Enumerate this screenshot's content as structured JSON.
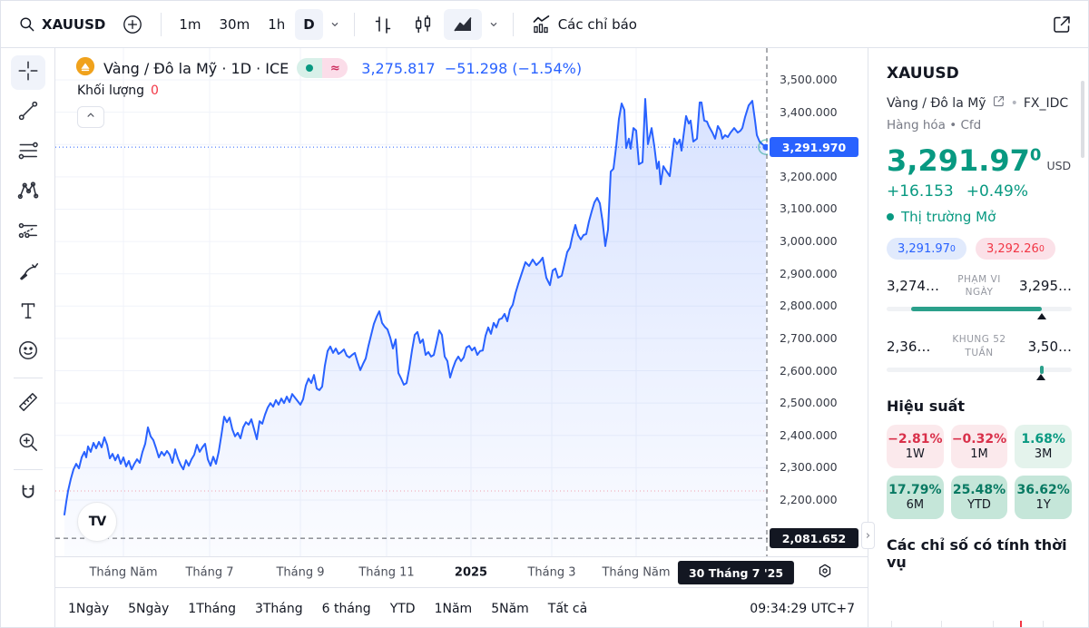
{
  "topbar": {
    "symbol": "XAUUSD",
    "timeframes": [
      "1m",
      "30m",
      "1h",
      "D"
    ],
    "indicators_label": "Các chỉ báo"
  },
  "legend": {
    "title": "Vàng / Đô la Mỹ · 1D · ICE",
    "price": "3,275.817",
    "change": "−51.298 (−1.54%)",
    "volume_label": "Khối lượng",
    "volume_value": "0",
    "logo_text": "TV"
  },
  "chart_data": {
    "type": "area",
    "symbol": "XAUUSD",
    "title": "Vàng / Đô la Mỹ · 1D · ICE",
    "interval": "1D",
    "line_color": "#2962FF",
    "grid": true,
    "price_scale": {
      "top_price": 3500,
      "top_y": 87,
      "bottom_price": 2200,
      "bottom_y": 550
    },
    "y_axis_ticks": [
      {
        "label": "3,500.000",
        "price": 3500
      },
      {
        "label": "3,400.000",
        "price": 3400
      },
      {
        "label": "3,200.000",
        "price": 3200
      },
      {
        "label": "3,100.000",
        "price": 3100
      },
      {
        "label": "3,000.000",
        "price": 3000
      },
      {
        "label": "2,900.000",
        "price": 2900
      },
      {
        "label": "2,800.000",
        "price": 2800
      },
      {
        "label": "2,700.000",
        "price": 2700
      },
      {
        "label": "2,600.000",
        "price": 2600
      },
      {
        "label": "2,500.000",
        "price": 2500
      },
      {
        "label": "2,400.000",
        "price": 2400
      },
      {
        "label": "2,300.000",
        "price": 2300
      },
      {
        "label": "2,200.000",
        "price": 2200
      }
    ],
    "current_price": {
      "label": "3,291.970",
      "price": 3291.97
    },
    "low_marker": {
      "label": "2,081.652",
      "price": 2081.652
    },
    "prev_close_price": 2228,
    "x_ticks": [
      {
        "label": "Tháng Năm",
        "x": 135
      },
      {
        "label": "Tháng 7",
        "x": 230
      },
      {
        "label": "Tháng 9",
        "x": 330
      },
      {
        "label": "Tháng 11",
        "x": 425
      },
      {
        "label": "2025",
        "x": 518,
        "bold": true
      },
      {
        "label": "Tháng 3",
        "x": 607
      },
      {
        "label": "Tháng Năm",
        "x": 700
      }
    ],
    "crosshair_date": {
      "label": "30 Tháng 7 '25",
      "x": 810
    },
    "series": [
      {
        "name": "XAUUSD",
        "points": [
          [
            70,
            2155
          ],
          [
            72,
            2194
          ],
          [
            74,
            2228
          ],
          [
            77,
            2265
          ],
          [
            80,
            2295
          ],
          [
            83,
            2312
          ],
          [
            86,
            2298
          ],
          [
            89,
            2332
          ],
          [
            92,
            2349
          ],
          [
            94,
            2332
          ],
          [
            96,
            2366
          ],
          [
            99,
            2349
          ],
          [
            102,
            2377
          ],
          [
            105,
            2360
          ],
          [
            108,
            2380
          ],
          [
            111,
            2363
          ],
          [
            114,
            2394
          ],
          [
            117,
            2371
          ],
          [
            120,
            2329
          ],
          [
            123,
            2343
          ],
          [
            126,
            2323
          ],
          [
            129,
            2340
          ],
          [
            132,
            2312
          ],
          [
            135,
            2332
          ],
          [
            138,
            2304
          ],
          [
            141,
            2321
          ],
          [
            144,
            2295
          ],
          [
            147,
            2312
          ],
          [
            150,
            2326
          ],
          [
            153,
            2315
          ],
          [
            156,
            2349
          ],
          [
            159,
            2374
          ],
          [
            162,
            2425
          ],
          [
            165,
            2397
          ],
          [
            168,
            2385
          ],
          [
            171,
            2360
          ],
          [
            174,
            2332
          ],
          [
            177,
            2349
          ],
          [
            180,
            2338
          ],
          [
            183,
            2352
          ],
          [
            186,
            2340
          ],
          [
            189,
            2315
          ],
          [
            192,
            2357
          ],
          [
            195,
            2329
          ],
          [
            198,
            2309
          ],
          [
            201,
            2295
          ],
          [
            204,
            2323
          ],
          [
            207,
            2306
          ],
          [
            210,
            2326
          ],
          [
            213,
            2340
          ],
          [
            216,
            2371
          ],
          [
            219,
            2349
          ],
          [
            222,
            2363
          ],
          [
            225,
            2374
          ],
          [
            228,
            2326
          ],
          [
            231,
            2306
          ],
          [
            234,
            2334
          ],
          [
            237,
            2312
          ],
          [
            240,
            2349
          ],
          [
            243,
            2402
          ],
          [
            246,
            2458
          ],
          [
            249,
            2441
          ],
          [
            252,
            2455
          ],
          [
            255,
            2419
          ],
          [
            258,
            2397
          ],
          [
            261,
            2408
          ],
          [
            264,
            2391
          ],
          [
            267,
            2425
          ],
          [
            270,
            2441
          ],
          [
            273,
            2433
          ],
          [
            276,
            2450
          ],
          [
            279,
            2419
          ],
          [
            282,
            2388
          ],
          [
            285,
            2444
          ],
          [
            288,
            2436
          ],
          [
            291,
            2464
          ],
          [
            294,
            2486
          ],
          [
            297,
            2500
          ],
          [
            300,
            2489
          ],
          [
            303,
            2509
          ],
          [
            306,
            2495
          ],
          [
            309,
            2514
          ],
          [
            312,
            2500
          ],
          [
            315,
            2520
          ],
          [
            318,
            2503
          ],
          [
            321,
            2528
          ],
          [
            324,
            2517
          ],
          [
            327,
            2506
          ],
          [
            330,
            2495
          ],
          [
            333,
            2512
          ],
          [
            336,
            2554
          ],
          [
            339,
            2576
          ],
          [
            342,
            2562
          ],
          [
            345,
            2587
          ],
          [
            348,
            2545
          ],
          [
            351,
            2540
          ],
          [
            354,
            2551
          ],
          [
            357,
            2616
          ],
          [
            360,
            2661
          ],
          [
            363,
            2675
          ],
          [
            366,
            2655
          ],
          [
            369,
            2669
          ],
          [
            372,
            2652
          ],
          [
            375,
            2658
          ],
          [
            378,
            2666
          ],
          [
            381,
            2647
          ],
          [
            384,
            2641
          ],
          [
            387,
            2649
          ],
          [
            390,
            2655
          ],
          [
            393,
            2627
          ],
          [
            396,
            2602
          ],
          [
            399,
            2621
          ],
          [
            402,
            2638
          ],
          [
            405,
            2677
          ],
          [
            408,
            2711
          ],
          [
            411,
            2745
          ],
          [
            414,
            2767
          ],
          [
            417,
            2784
          ],
          [
            420,
            2748
          ],
          [
            423,
            2736
          ],
          [
            426,
            2728
          ],
          [
            429,
            2703
          ],
          [
            432,
            2669
          ],
          [
            435,
            2697
          ],
          [
            438,
            2593
          ],
          [
            441,
            2576
          ],
          [
            444,
            2557
          ],
          [
            447,
            2562
          ],
          [
            450,
            2607
          ],
          [
            453,
            2663
          ],
          [
            456,
            2711
          ],
          [
            459,
            2720
          ],
          [
            462,
            2686
          ],
          [
            465,
            2697
          ],
          [
            468,
            2649
          ],
          [
            471,
            2658
          ],
          [
            474,
            2644
          ],
          [
            477,
            2649
          ],
          [
            480,
            2686
          ],
          [
            483,
            2725
          ],
          [
            486,
            2711
          ],
          [
            489,
            2644
          ],
          [
            492,
            2630
          ],
          [
            495,
            2579
          ],
          [
            498,
            2607
          ],
          [
            501,
            2630
          ],
          [
            504,
            2644
          ],
          [
            507,
            2630
          ],
          [
            510,
            2641
          ],
          [
            513,
            2672
          ],
          [
            516,
            2677
          ],
          [
            519,
            2663
          ],
          [
            522,
            2672
          ],
          [
            525,
            2649
          ],
          [
            528,
            2661
          ],
          [
            531,
            2663
          ],
          [
            534,
            2708
          ],
          [
            537,
            2734
          ],
          [
            540,
            2714
          ],
          [
            543,
            2748
          ],
          [
            546,
            2734
          ],
          [
            549,
            2759
          ],
          [
            552,
            2762
          ],
          [
            555,
            2776
          ],
          [
            558,
            2753
          ],
          [
            561,
            2790
          ],
          [
            564,
            2804
          ],
          [
            567,
            2840
          ],
          [
            570,
            2868
          ],
          [
            574,
            2902
          ],
          [
            578,
            2936
          ],
          [
            582,
            2924
          ],
          [
            586,
            2944
          ],
          [
            590,
            2927
          ],
          [
            594,
            2938
          ],
          [
            597,
            2950
          ],
          [
            601,
            2888
          ],
          [
            605,
            2865
          ],
          [
            608,
            2910
          ],
          [
            611,
            2916
          ],
          [
            614,
            2888
          ],
          [
            618,
            2894
          ],
          [
            621,
            2930
          ],
          [
            624,
            2967
          ],
          [
            627,
            2981
          ],
          [
            630,
            3020
          ],
          [
            633,
            3051
          ],
          [
            636,
            3020
          ],
          [
            639,
            3006
          ],
          [
            642,
            3020
          ],
          [
            645,
            3023
          ],
          [
            648,
            3062
          ],
          [
            651,
            3093
          ],
          [
            654,
            3121
          ],
          [
            657,
            3135
          ],
          [
            660,
            3118
          ],
          [
            663,
            3062
          ],
          [
            666,
            2986
          ],
          [
            669,
            3037
          ],
          [
            672,
            3216
          ],
          [
            675,
            3225
          ],
          [
            678,
            3295
          ],
          [
            681,
            3379
          ],
          [
            684,
            3427
          ],
          [
            687,
            3407
          ],
          [
            689,
            3289
          ],
          [
            692,
            3318
          ],
          [
            694,
            3287
          ],
          [
            697,
            3351
          ],
          [
            700,
            3343
          ],
          [
            703,
            3239
          ],
          [
            707,
            3245
          ],
          [
            710,
            3441
          ],
          [
            713,
            3301
          ],
          [
            717,
            3351
          ],
          [
            720,
            3295
          ],
          [
            723,
            3225
          ],
          [
            725,
            3247
          ],
          [
            727,
            3177
          ],
          [
            730,
            3233
          ],
          [
            733,
            3219
          ],
          [
            737,
            3202
          ],
          [
            742,
            3318
          ],
          [
            745,
            3301
          ],
          [
            748,
            3315
          ],
          [
            750,
            3281
          ],
          [
            755,
            3388
          ],
          [
            758,
            3365
          ],
          [
            760,
            3374
          ],
          [
            763,
            3309
          ],
          [
            767,
            3318
          ],
          [
            770,
            3430
          ],
          [
            772,
            3430
          ],
          [
            775,
            3374
          ],
          [
            778,
            3371
          ],
          [
            780,
            3357
          ],
          [
            784,
            3337
          ],
          [
            787,
            3318
          ],
          [
            790,
            3357
          ],
          [
            793,
            3343
          ],
          [
            795,
            3318
          ],
          [
            798,
            3329
          ],
          [
            801,
            3323
          ],
          [
            804,
            3337
          ],
          [
            808,
            3351
          ],
          [
            812,
            3337
          ],
          [
            815,
            3343
          ],
          [
            817,
            3351
          ],
          [
            820,
            3385
          ],
          [
            824,
            3421
          ],
          [
            828,
            3435
          ],
          [
            831,
            3374
          ],
          [
            833,
            3329
          ],
          [
            836,
            3309
          ],
          [
            839,
            3301
          ],
          [
            843,
            3292
          ]
        ]
      }
    ]
  },
  "bottom_bar": {
    "ranges": [
      "1Ngày",
      "5Ngày",
      "1Tháng",
      "3Tháng",
      "6 tháng",
      "YTD",
      "1Năm",
      "5Năm",
      "Tất cả"
    ],
    "clock": "09:34:29 UTC+7"
  },
  "right_panel": {
    "symbol": "XAUUSD",
    "name": "Vàng / Đô la Mỹ",
    "exchange": "FX_IDC",
    "market_type": "Hàng hóa",
    "instrument_type": "Cfd",
    "price_main": "3,291.97",
    "price_sup": "0",
    "currency": "USD",
    "change_abs": "+16.153",
    "change_pct": "+0.49%",
    "market_status": "Thị trường Mở",
    "bid": "3,291.97",
    "bid_sup": "0",
    "ask": "3,292.26",
    "ask_sup": "0",
    "day_range": {
      "low": "3,274…",
      "label_line1": "PHẠM VI",
      "label_line2": "NGÀY",
      "high": "3,295…",
      "fill_start_pct": 13,
      "fill_end_pct": 84
    },
    "week52_range": {
      "low": "2,36…",
      "label_line1": "KHUNG 52",
      "label_line2": "TUẦN",
      "high": "3,50…",
      "marker_pct": 83
    },
    "performance_title": "Hiệu suất",
    "performance": [
      {
        "value": "−2.81%",
        "period": "1W"
      },
      {
        "value": "−0.32%",
        "period": "1M"
      },
      {
        "value": "1.68%",
        "period": "3M"
      },
      {
        "value": "17.79%",
        "period": "6M"
      },
      {
        "value": "25.48%",
        "period": "YTD"
      },
      {
        "value": "36.62%",
        "period": "1Y"
      }
    ],
    "seasonality_title": "Các chỉ số có tính thời vụ"
  }
}
